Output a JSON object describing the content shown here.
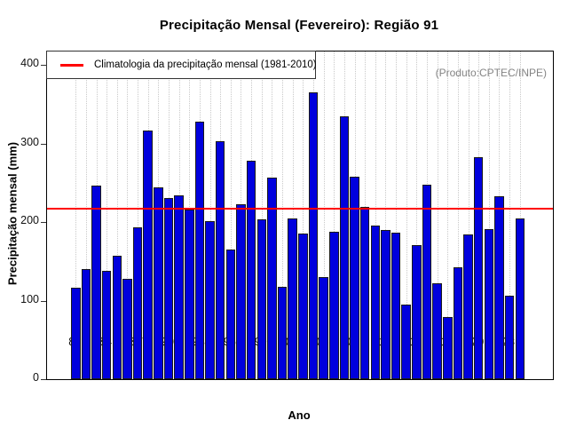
{
  "title": "Precipitação Mensal (Fevereiro): Região 91",
  "corner_note": "(Produto:CPTEC/INPE)",
  "legend": {
    "label": "Climatologia da precipitação mensal (1981-2010)"
  },
  "chart_data": {
    "type": "bar",
    "title": "Precipitação Mensal (Fevereiro): Região 91",
    "xlabel": "Ano",
    "ylabel": "Precipitação mensal (mm)",
    "categories": [
      1981,
      1982,
      1983,
      1984,
      1985,
      1986,
      1987,
      1988,
      1989,
      1990,
      1991,
      1992,
      1993,
      1994,
      1995,
      1996,
      1997,
      1998,
      1999,
      2000,
      2001,
      2002,
      2003,
      2004,
      2005,
      2006,
      2007,
      2008,
      2009,
      2010,
      2011,
      2012,
      2013,
      2014,
      2015,
      2016,
      2017,
      2018,
      2019,
      2020,
      2021,
      2022,
      2023,
      2024
    ],
    "values": [
      116,
      140,
      246,
      138,
      157,
      128,
      193,
      316,
      244,
      230,
      234,
      216,
      328,
      201,
      303,
      165,
      223,
      278,
      203,
      257,
      117,
      205,
      185,
      365,
      130,
      188,
      335,
      258,
      219,
      196,
      190,
      186,
      95,
      171,
      247,
      122,
      79,
      142,
      184,
      283,
      191,
      233,
      106,
      204
    ],
    "x_tick_labels": [
      "81",
      "84",
      "87",
      "90",
      "93",
      "96",
      "99",
      "02",
      "05",
      "08",
      "11",
      "14",
      "17",
      "20",
      "23"
    ],
    "x_tick_label_step": 3,
    "y_ticks": [
      0,
      100,
      200,
      300,
      400
    ],
    "ylim": [
      0,
      417
    ],
    "grid": "vertical-dotted",
    "legend_position": "top-left",
    "bar_color": "#0000dd",
    "climatology_line": {
      "value": 217,
      "color": "#ff0000",
      "label": "Climatologia da precipitação mensal (1981-2010)"
    }
  }
}
